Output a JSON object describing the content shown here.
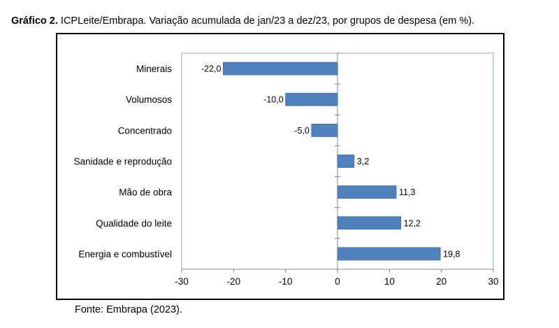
{
  "title_prefix": "Gráfico 2.",
  "title_rest": "ICPLeite/Embrapa. Variação acumulada de jan/23 a dez/23, por grupos de despesa (em %).",
  "source": "Fonte: Embrapa (2023).",
  "colors": {
    "bar": "#4f81bd",
    "bar_edge": "#3a6aa0",
    "axis": "#868686",
    "plot_border": "#86a8d0"
  },
  "chart_data": {
    "type": "bar",
    "orientation": "horizontal",
    "title": "ICPLeite/Embrapa. Variação acumulada de jan/23 a dez/23, por grupos de despesa (em %).",
    "categories": [
      "Minerais",
      "Volumosos",
      "Concentrado",
      "Sanidade e reprodução",
      "Mão de obra",
      "Qualidade do leite",
      "Energia e combustível"
    ],
    "values": [
      -22.0,
      -10.0,
      -5.0,
      3.2,
      11.3,
      12.2,
      19.8
    ],
    "value_labels": [
      "-22,0",
      "-10,0",
      "-5,0",
      "3,2",
      "11,3",
      "12,2",
      "19,8"
    ],
    "xlim": [
      -30,
      30
    ],
    "xticks": [
      -30,
      -20,
      -10,
      0,
      10,
      20,
      30
    ],
    "xlabel": "",
    "ylabel": "",
    "grid": false,
    "legend": "none"
  }
}
